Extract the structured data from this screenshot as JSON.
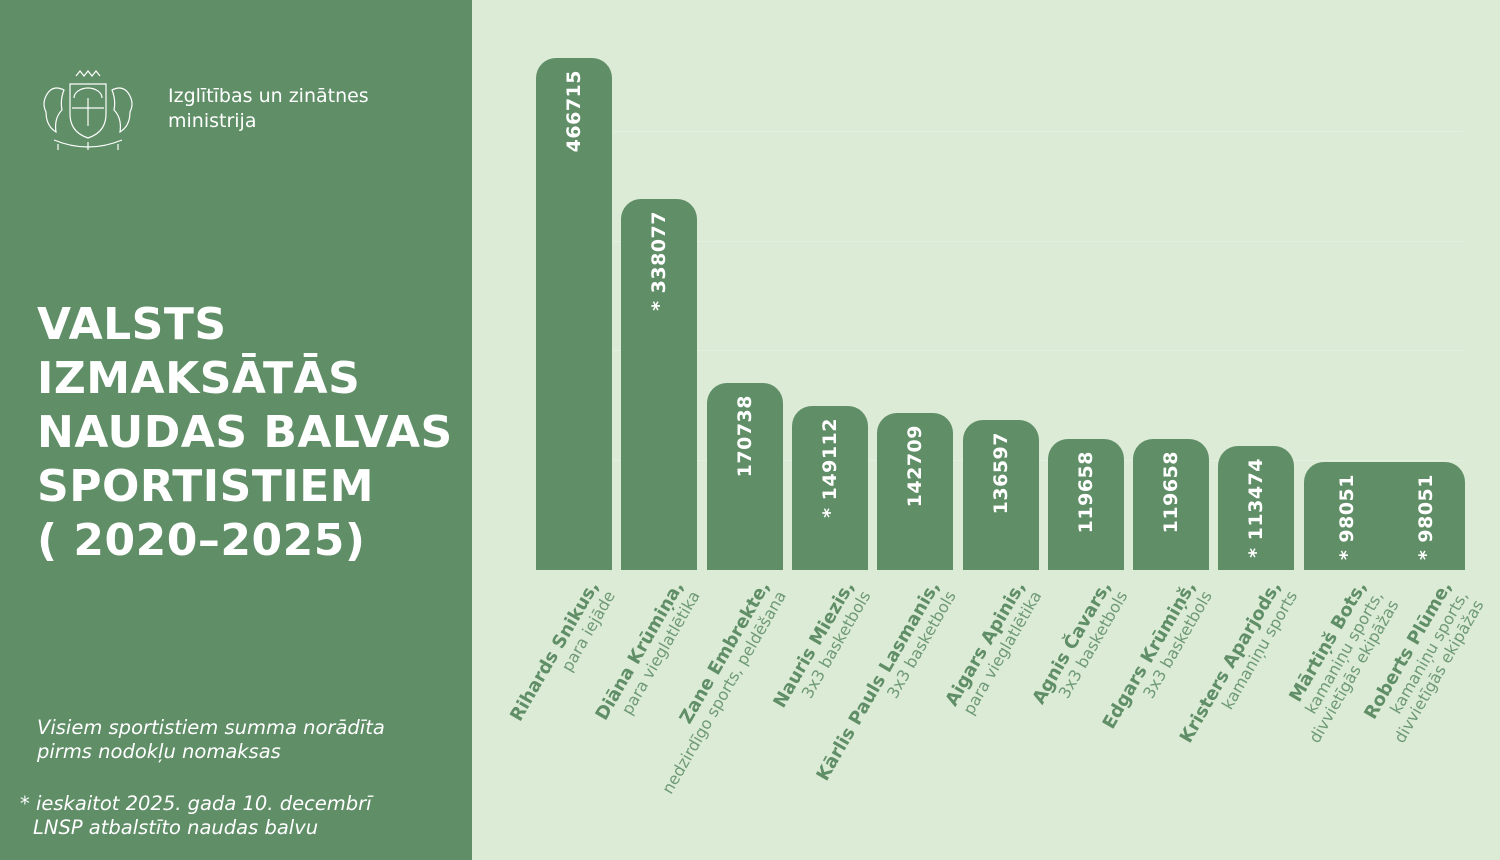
{
  "header": {
    "ministry_line1": "Izglītības un zinātnes",
    "ministry_line2": "ministrija",
    "logo_icon": "latvia-coat-of-arms-icon"
  },
  "title": {
    "line1": "VALSTS",
    "line2": "IZMAKSĀTĀS",
    "line3": "NAUDAS BALVAS",
    "line4": "SPORTISTIEM",
    "line5": "( 2020–2025)"
  },
  "notes": {
    "note1_line1": "Visiem sportistiem summa norādīta",
    "note1_line2": "pirms nodokļu nomaksas",
    "note2_line1": "* ieskaitot 2025. gada 10. decembrī",
    "note2_line2": "LNSP atbalstīto naudas balvu"
  },
  "colors": {
    "panel": "#5f8e67",
    "background": "#dcebd6",
    "bar": "#5f8e67",
    "text_light": "#ffffff"
  },
  "bars": [
    {
      "label": "466715",
      "name": "Rihards Snikus,",
      "sport": [
        "para iejāde"
      ]
    },
    {
      "label": "* 338077",
      "name": "Diāna Krūmiņa,",
      "sport": [
        "para vieglatlētika"
      ]
    },
    {
      "label": "170738",
      "name": "Zane Embrekte,",
      "sport": [
        "nedzirdīgo sports, peldēšana"
      ]
    },
    {
      "label": "* 149112",
      "name": "Nauris Miezis,",
      "sport": [
        "3x3 basketbols"
      ]
    },
    {
      "label": "142709",
      "name": "Kārlis Pauls Lasmanis,",
      "sport": [
        "3x3 basketbols"
      ]
    },
    {
      "label": "136597",
      "name": "Aigars Apinis,",
      "sport": [
        "para vieglatlētika"
      ]
    },
    {
      "label": "119658",
      "name": "Agnis Čavars,",
      "sport": [
        "3x3 basketbols"
      ]
    },
    {
      "label": "119658",
      "name": "Edgars Krūmiņš,",
      "sport": [
        "3x3 basketbols"
      ]
    },
    {
      "label": "* 113474",
      "name": "Kristers Aparjods,",
      "sport": [
        "kamaniņu sports"
      ]
    },
    {
      "label": "* 98051",
      "name": "Mārtiņš Bots,",
      "sport": [
        "kamaniņu sports,",
        "divvietīgās ekipāžas"
      ]
    },
    {
      "label": "* 98051",
      "name": "Roberts Plūme,",
      "sport": [
        "kamaniņu sports,",
        "divvietīgās ekipāžas"
      ]
    }
  ],
  "chart_data": {
    "type": "bar",
    "title": "Valsts izmaksātās naudas balvas sportistiem (2020–2025)",
    "xlabel": "",
    "ylabel": "",
    "categories": [
      "Rihards Snikus, para iejāde",
      "Diāna Krūmiņa, para vieglatlētika",
      "Zane Embrekte, nedzirdīgo sports, peldēšana",
      "Nauris Miezis, 3x3 basketbols",
      "Kārlis Pauls Lasmanis, 3x3 basketbols",
      "Aigars Apinis, para vieglatlētika",
      "Agnis Čavars, 3x3 basketbols",
      "Edgars Krūmiņš, 3x3 basketbols",
      "Kristers Aparjods, kamaniņu sports",
      "Mārtiņš Bots, kamaniņu sports, divvietīgās ekipāžas",
      "Roberts Plūme, kamaniņu sports, divvietīgās ekipāžas"
    ],
    "values": [
      466715,
      338077,
      170738,
      149112,
      142709,
      136597,
      119658,
      119658,
      113474,
      98051,
      98051
    ],
    "asterisk": [
      false,
      true,
      false,
      true,
      false,
      false,
      false,
      false,
      true,
      true,
      true
    ],
    "ylim": [
      0,
      480000
    ],
    "grid": true,
    "legend": null,
    "annotations": [
      "Visiem sportistiem summa norādīta pirms nodokļu nomaksas",
      "* ieskaitot 2025. gada 10. decembrī LNSP atbalstīto naudas balvu"
    ]
  }
}
